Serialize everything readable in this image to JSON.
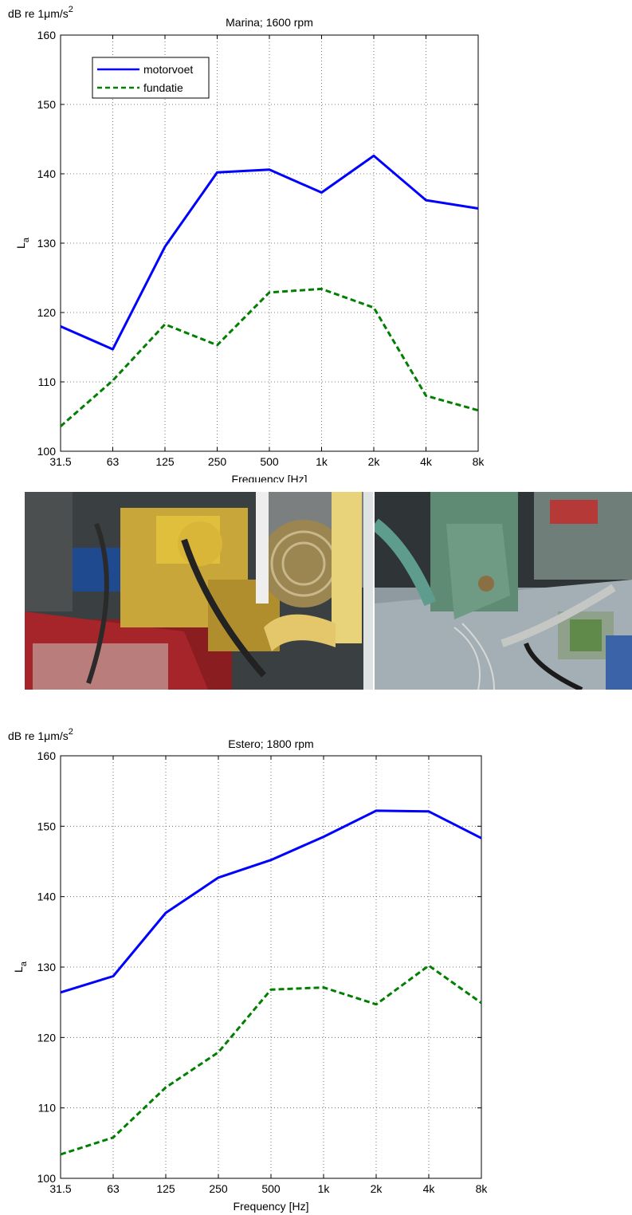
{
  "charts": [
    {
      "id": "marina",
      "chart_data": {
        "type": "line",
        "title": "Marina; 1600 rpm",
        "xlabel": "Frequency [Hz]",
        "ylabel": "L",
        "ylabel_sub": "a",
        "yunit_prefix": "dB re 1",
        "yunit_mu": "μ",
        "yunit_rest": "m/s",
        "yunit_sup": "2",
        "categories": [
          "31.5",
          "63",
          "125",
          "250",
          "500",
          "1k",
          "2k",
          "4k",
          "8k"
        ],
        "ylim": [
          100,
          160
        ],
        "yticks": [
          100,
          110,
          120,
          130,
          140,
          150,
          160
        ],
        "grid": true,
        "legend": "top-left",
        "series": [
          {
            "name": "motorvoet",
            "values": [
              118.0,
              114.7,
              129.5,
              140.2,
              140.6,
              137.3,
              142.6,
              136.2,
              135.0
            ],
            "color": "#0000ff",
            "style": "solid"
          },
          {
            "name": "fundatie",
            "values": [
              103.6,
              110.2,
              118.3,
              115.3,
              122.9,
              123.4,
              120.7,
              108.0,
              105.9
            ],
            "color": "#007f00",
            "style": "dashed"
          }
        ]
      }
    },
    {
      "id": "estero",
      "chart_data": {
        "type": "line",
        "title": "Estero; 1800 rpm",
        "xlabel": "Frequency [Hz]",
        "ylabel": "L",
        "ylabel_sub": "a",
        "yunit_prefix": "dB re 1",
        "yunit_mu": "μ",
        "yunit_rest": "m/s",
        "yunit_sup": "2",
        "categories": [
          "31.5",
          "63",
          "125",
          "250",
          "500",
          "1k",
          "2k",
          "4k",
          "8k"
        ],
        "ylim": [
          100,
          160
        ],
        "yticks": [
          100,
          110,
          120,
          130,
          140,
          150,
          160
        ],
        "grid": true,
        "legend": "none",
        "series": [
          {
            "name": "",
            "values": [
              126.4,
              128.7,
              137.7,
              142.7,
              145.2,
              148.5,
              152.2,
              152.1,
              148.3
            ],
            "color": "#0000ff",
            "style": "solid"
          },
          {
            "name": "",
            "values": [
              103.4,
              105.8,
              112.9,
              117.9,
              126.8,
              127.1,
              124.7,
              130.2,
              124.9
            ],
            "color": "#007f00",
            "style": "dashed"
          }
        ]
      }
    }
  ]
}
